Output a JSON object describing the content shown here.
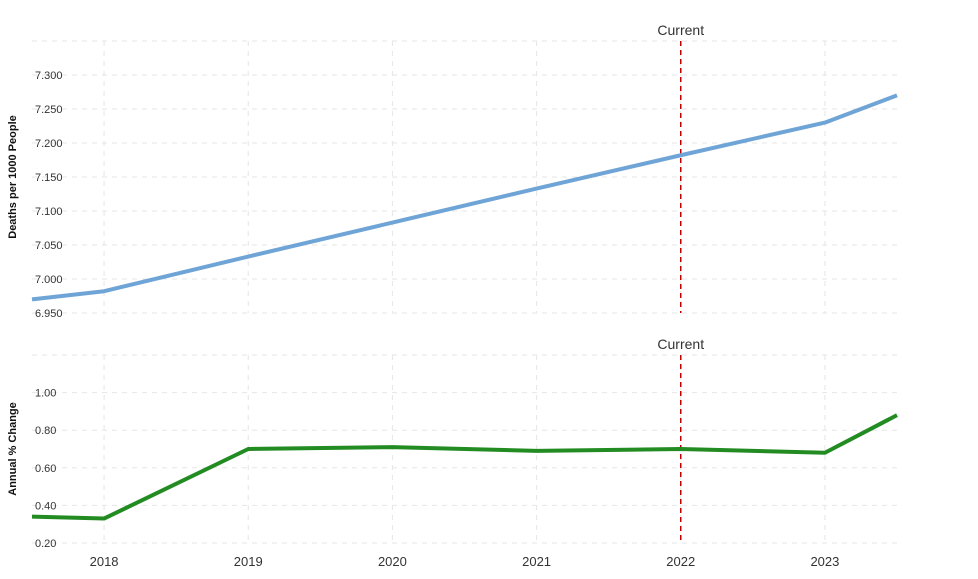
{
  "chart_data": [
    {
      "type": "line",
      "title": "",
      "ylabel": "Deaths per 1000 People",
      "xlabel": "",
      "x": [
        2017.5,
        2018,
        2019,
        2020,
        2021,
        2022,
        2023,
        2023.5
      ],
      "series": [
        {
          "values": [
            6.97,
            6.982,
            7.033,
            7.083,
            7.133,
            7.182,
            7.23,
            7.27
          ],
          "color": "#6fa4d6"
        }
      ],
      "ylim": [
        6.95,
        7.35
      ],
      "yticks": [
        "6.950",
        "7.000",
        "7.050",
        "7.100",
        "7.150",
        "7.200",
        "7.250",
        "7.300"
      ],
      "grid": true,
      "marker": {
        "x": 2022,
        "label": "Current"
      }
    },
    {
      "type": "line",
      "title": "",
      "ylabel": "Annual % Change",
      "xlabel": "",
      "x": [
        2017.5,
        2018,
        2019,
        2020,
        2021,
        2022,
        2023,
        2023.5
      ],
      "series": [
        {
          "values": [
            0.34,
            0.33,
            0.7,
            0.71,
            0.69,
            0.7,
            0.68,
            0.88
          ],
          "color": "#228b22"
        }
      ],
      "ylim": [
        0.2,
        1.2
      ],
      "yticks": [
        "0.20",
        "0.40",
        "0.60",
        "0.80",
        "1.00"
      ],
      "grid": true,
      "marker": {
        "x": 2022,
        "label": "Current"
      }
    }
  ],
  "x_axis": {
    "ticks": [
      "2018",
      "2019",
      "2020",
      "2021",
      "2022",
      "2023"
    ],
    "range": [
      2017.5,
      2023.5
    ]
  }
}
